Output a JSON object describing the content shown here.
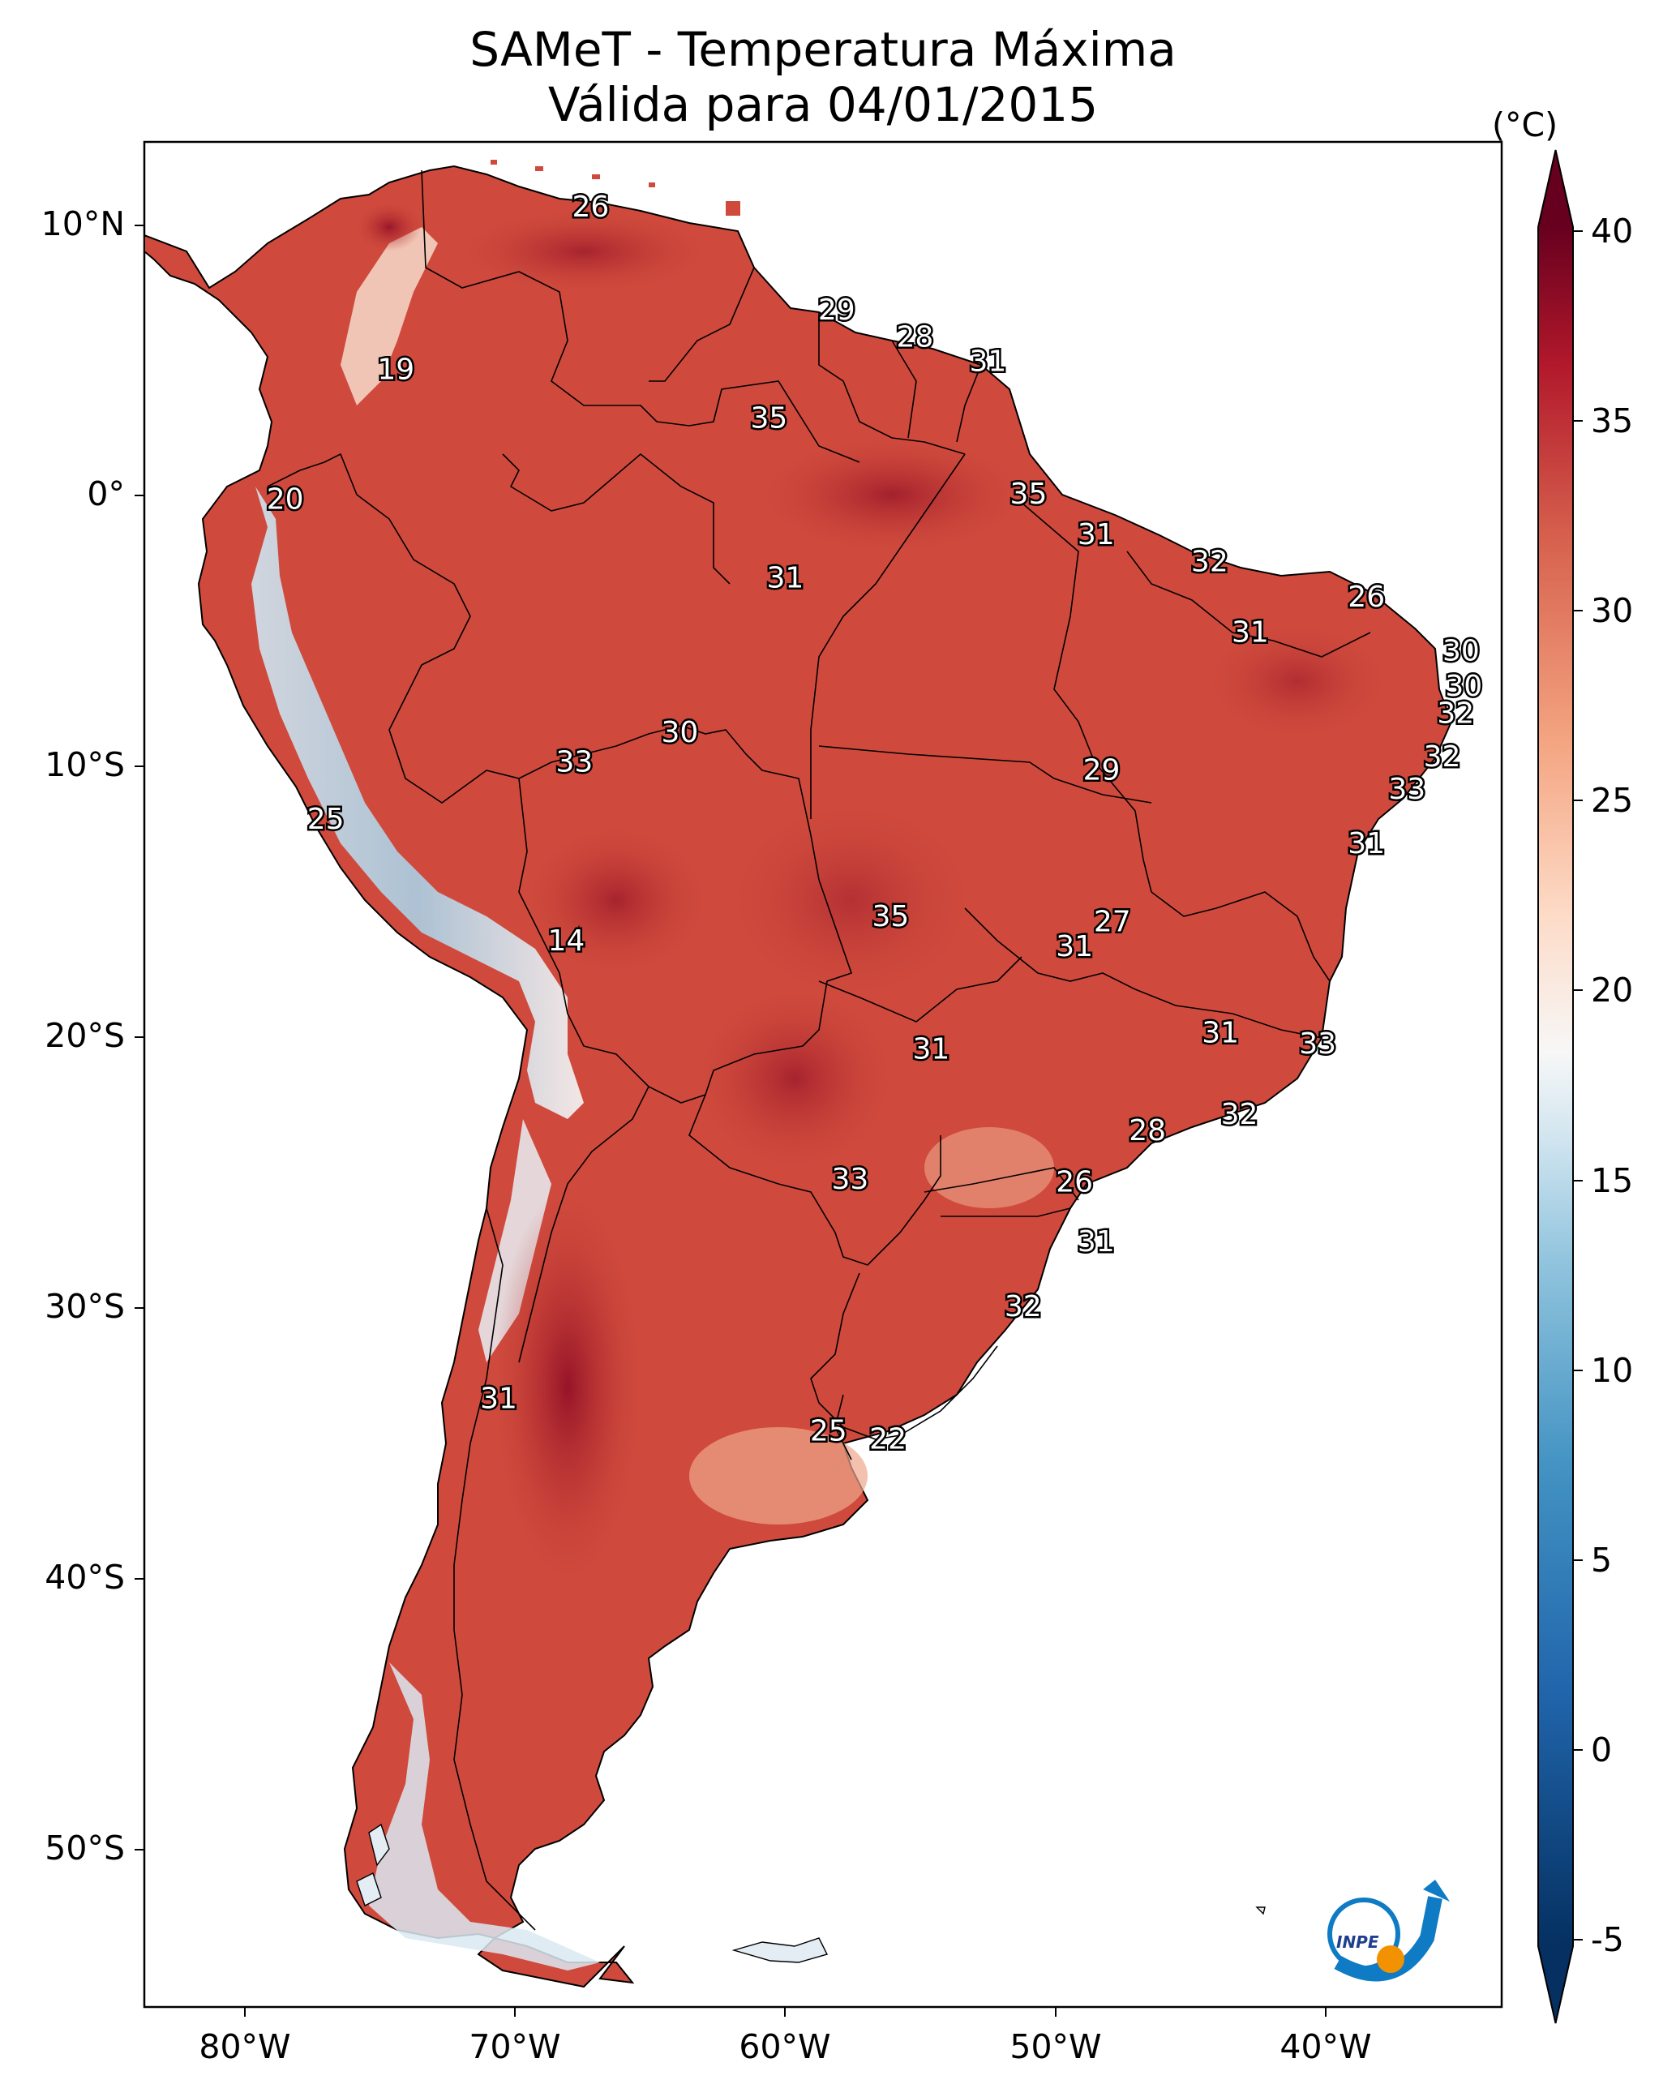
{
  "title": {
    "line1": "SAMeT - Temperatura Máxima",
    "line2": "Válida para 04/01/2015"
  },
  "axes": {
    "lon_ticks": [
      "80°W",
      "70°W",
      "60°W",
      "50°W",
      "40°W"
    ],
    "lat_ticks": [
      "10°N",
      "0°",
      "10°S",
      "20°S",
      "30°S",
      "40°S",
      "50°S"
    ]
  },
  "colorbar": {
    "unit": "(°C)",
    "ticks": [
      "40",
      "35",
      "30",
      "25",
      "20",
      "15",
      "10",
      "5",
      "0",
      "-5"
    ],
    "range": [
      -5,
      40
    ],
    "colormap": "RdBu_r",
    "colors": {
      "min": "#053061",
      "low": "#4393c3",
      "mid_low": "#d1e5f0",
      "mid": "#f7f7f7",
      "mid_high": "#f4a582",
      "high": "#d6604d",
      "max": "#67001f"
    }
  },
  "station_labels": [
    {
      "text": "26",
      "lon": -67.2,
      "lat": 10.6
    },
    {
      "text": "19",
      "lon": -74.4,
      "lat": 4.6
    },
    {
      "text": "29",
      "lon": -58.1,
      "lat": 6.8
    },
    {
      "text": "28",
      "lon": -55.2,
      "lat": 5.8
    },
    {
      "text": "31",
      "lon": -52.5,
      "lat": 4.9
    },
    {
      "text": "35",
      "lon": -60.6,
      "lat": 2.8
    },
    {
      "text": "20",
      "lon": -78.5,
      "lat": -0.2
    },
    {
      "text": "35",
      "lon": -51.0,
      "lat": -0.0
    },
    {
      "text": "31",
      "lon": -48.5,
      "lat": -1.5
    },
    {
      "text": "31",
      "lon": -60.0,
      "lat": -3.1
    },
    {
      "text": "32",
      "lon": -44.3,
      "lat": -2.5
    },
    {
      "text": "26",
      "lon": -38.5,
      "lat": -3.8
    },
    {
      "text": "31",
      "lon": -42.8,
      "lat": -5.1
    },
    {
      "text": "30",
      "lon": -35.0,
      "lat": -5.8
    },
    {
      "text": "30",
      "lon": -34.9,
      "lat": -7.1
    },
    {
      "text": "32",
      "lon": -35.2,
      "lat": -8.1
    },
    {
      "text": "30",
      "lon": -63.9,
      "lat": -8.8
    },
    {
      "text": "33",
      "lon": -67.8,
      "lat": -9.9
    },
    {
      "text": "29",
      "lon": -48.3,
      "lat": -10.2
    },
    {
      "text": "32",
      "lon": -35.7,
      "lat": -9.7
    },
    {
      "text": "33",
      "lon": -37.0,
      "lat": -10.9
    },
    {
      "text": "25",
      "lon": -77.0,
      "lat": -12.0
    },
    {
      "text": "31",
      "lon": -38.5,
      "lat": -12.9
    },
    {
      "text": "27",
      "lon": -47.9,
      "lat": -15.8
    },
    {
      "text": "35",
      "lon": -56.1,
      "lat": -15.6
    },
    {
      "text": "31",
      "lon": -49.3,
      "lat": -16.7
    },
    {
      "text": "14",
      "lon": -68.1,
      "lat": -16.5
    },
    {
      "text": "31",
      "lon": -43.9,
      "lat": -19.9
    },
    {
      "text": "33",
      "lon": -40.3,
      "lat": -20.3
    },
    {
      "text": "31",
      "lon": -54.6,
      "lat": -20.5
    },
    {
      "text": "32",
      "lon": -43.2,
      "lat": -22.9
    },
    {
      "text": "28",
      "lon": -46.6,
      "lat": -23.5
    },
    {
      "text": "33",
      "lon": -57.6,
      "lat": -25.3
    },
    {
      "text": "26",
      "lon": -49.3,
      "lat": -25.4
    },
    {
      "text": "31",
      "lon": -48.5,
      "lat": -27.6
    },
    {
      "text": "32",
      "lon": -51.2,
      "lat": -30.0
    },
    {
      "text": "31",
      "lon": -70.6,
      "lat": -33.4
    },
    {
      "text": "25",
      "lon": -58.4,
      "lat": -34.6
    },
    {
      "text": "22",
      "lon": -56.2,
      "lat": -34.9
    }
  ]
}
